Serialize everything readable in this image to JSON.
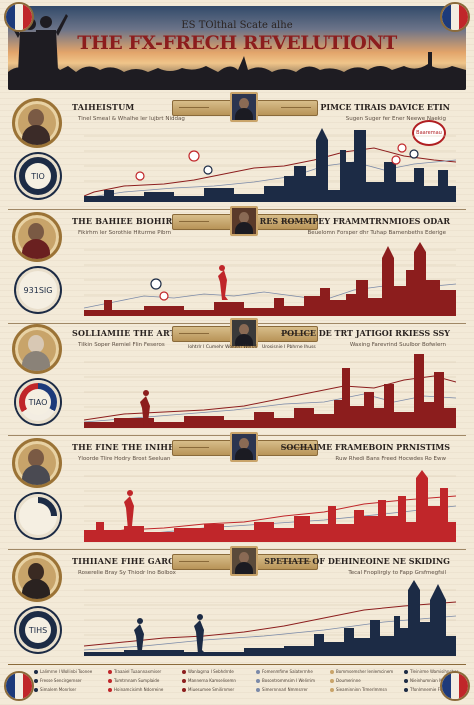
{
  "header": {
    "pretitle": "ES TOlthal Scate alhe",
    "title": "THE FX-FRECH REVELUTIONT"
  },
  "colors": {
    "navy": "#1c2b45",
    "crimson": "#8c1d1d",
    "red": "#c0262a",
    "gold": "#c9a46a",
    "paper": "#f3ead8"
  },
  "rows": [
    {
      "left_title": "TAIHEISTUM",
      "left_sub": "Tinel Smeal & Whalhe ler lujbrt Niddag",
      "right_title": "PIMCE TIRAIS DAVICE ETIN",
      "right_sub": "Sugen Suger fer Ener Neewe Naekig",
      "stat": "TIO",
      "stat_style": "navy",
      "badge": "Baaremau",
      "portrait_caption_left": "",
      "portrait_caption_right": "",
      "skyline_color": "#1c2b45"
    },
    {
      "left_title": "THE BAHIEE BIOHIRSSSA",
      "left_sub": "Fikirhm ler Sorothie Hiturme Pibrn",
      "right_title": "RES ROMMPEY FRAMMTRNMIOES ODAR",
      "right_sub": "Beuelomn Forsper dhr Tuhap Bamenbeths Ederige",
      "stat": "931SIG",
      "stat_style": "light",
      "badge": "",
      "portrait_caption_left": "",
      "portrait_caption_right": "",
      "skyline_color": "#8c1d1d"
    },
    {
      "left_title": "SOLLIAMIIE THE ART TRAIUES",
      "left_sub": "Tilkin Soper Remiel Flin Feseros",
      "right_title": "POLICE DE TRT JATIGOI RKIESS SSY",
      "right_sub": "Waxing Farevrind Suulbor Bofwlern",
      "stat": "TIAO",
      "stat_style": "flag",
      "badge": "",
      "portrait_caption_left": "Iohtrlr I Cumehr Woiden Weroli",
      "portrait_caption_right": "Urosisnie I Pbhrne Ihuss",
      "skyline_color": "#8c1d1d"
    },
    {
      "left_title": "THE FINE THE INIHENSTAR",
      "left_sub": "Yloorde Tlire Hodry Brost Seeluan",
      "right_title": "SOCHAIME FRAMEBOIN PRNISTIMS",
      "right_sub": "Ruw Rhedi Bans Freed Hocwdes Ro Eww",
      "stat": "",
      "stat_style": "light",
      "badge": "",
      "portrait_caption_left": "",
      "portrait_caption_right": "",
      "skyline_color": "#c0262a"
    },
    {
      "left_title": "TIHIIANE FIHE GAROSSSO",
      "left_sub": "Roserelie Bray Sy Thiodr Ino Bolbox",
      "right_title": "SPETIATE OF DEHINEOINE NE SKIDING",
      "right_sub": "Tecal Fnoplirgly to Fapp Grsfmegfsil",
      "stat": "TIHS",
      "stat_style": "navy",
      "badge": "",
      "portrait_caption_left": "",
      "portrait_caption_right": "",
      "skyline_color": "#1c2b45"
    }
  ],
  "footer": {
    "legend": [
      "Lalimrne I Wollinbi Toonee",
      "Traaaiel Tuaannaxmiser",
      "Wanlagrna I Sebhdrrde",
      "Fomenmfime Salaterrnhe",
      "Bommsemsher lenlemcinem",
      "Tleinirme Wamisihnsher",
      "Fresse Sencirgernser",
      "Tumtrnnam Sumplaide",
      "Mannerna Kamselisemn",
      "Bosontrommsim I Welirrim",
      "Doumerinne",
      "Nieinhumnian Mmonrotsber",
      "Simalem Monrlser",
      "Hoinamcisimh Ndorreine",
      "Miuesumee Smilirnmer",
      "Simernnnarl Nmmsrrer",
      "Sieaminninn Trmerlmmsn",
      "Tfonlmnemie Fmowien"
    ]
  }
}
